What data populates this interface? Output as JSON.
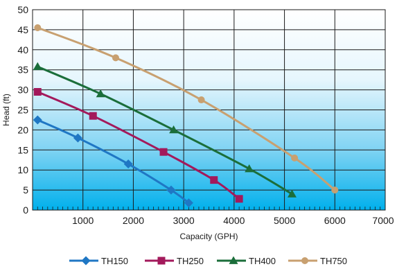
{
  "chart_data": {
    "type": "line",
    "xlabel": "Capacity (GPH)",
    "ylabel": "Head (ft)",
    "xlim": [
      0,
      7000
    ],
    "ylim": [
      0,
      50
    ],
    "x_ticks": [
      1000,
      2000,
      3000,
      4000,
      5000,
      6000,
      7000
    ],
    "x_tick_labels": [
      "1000",
      "2000",
      "3000",
      "4000",
      "5000",
      "6000",
      "7000"
    ],
    "y_ticks": [
      0,
      5,
      10,
      15,
      20,
      25,
      30,
      35,
      40,
      45,
      50
    ],
    "y_tick_labels": [
      "0",
      "5",
      "10",
      "15",
      "20",
      "25",
      "30",
      "35",
      "40",
      "45",
      "50"
    ],
    "grid": true,
    "legend_placement": "bottom",
    "background": "vertical gradient, white at top to cyan at bottom",
    "series": [
      {
        "name": "TH150",
        "color": "#1f77c4",
        "marker": "diamond",
        "points": [
          [
            100,
            22.5
          ],
          [
            900,
            18
          ],
          [
            1900,
            11.5
          ],
          [
            2750,
            5
          ],
          [
            3100,
            1.8
          ]
        ]
      },
      {
        "name": "TH250",
        "color": "#a3195b",
        "marker": "square",
        "points": [
          [
            100,
            29.5
          ],
          [
            1200,
            23.5
          ],
          [
            2600,
            14.5
          ],
          [
            3600,
            7.5
          ],
          [
            4100,
            2.8
          ]
        ]
      },
      {
        "name": "TH400",
        "color": "#1b6e3a",
        "marker": "triangle",
        "points": [
          [
            100,
            35.8
          ],
          [
            1350,
            29
          ],
          [
            2800,
            20
          ],
          [
            4300,
            10.3
          ],
          [
            5150,
            4
          ]
        ]
      },
      {
        "name": "TH750",
        "color": "#c8a070",
        "marker": "circle",
        "points": [
          [
            100,
            45.5
          ],
          [
            1650,
            38
          ],
          [
            3350,
            27.5
          ],
          [
            5200,
            13
          ],
          [
            6000,
            5
          ]
        ]
      }
    ]
  }
}
